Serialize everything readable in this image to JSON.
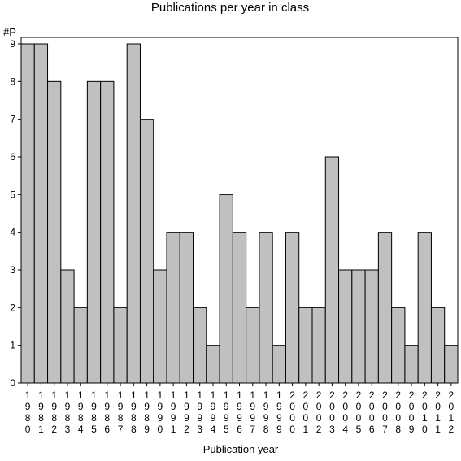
{
  "chart_data": {
    "type": "bar",
    "title": "Publications per year in class",
    "ylabel": "#P",
    "xlabel": "Publication year",
    "ylim": [
      0,
      9
    ],
    "yticks": [
      0,
      1,
      2,
      3,
      4,
      5,
      6,
      7,
      8,
      9
    ],
    "grid": false,
    "categories": [
      "1980",
      "1981",
      "1982",
      "1983",
      "1984",
      "1985",
      "1986",
      "1987",
      "1988",
      "1989",
      "1990",
      "1991",
      "1992",
      "1993",
      "1994",
      "1995",
      "1996",
      "1997",
      "1998",
      "1999",
      "2000",
      "2001",
      "2002",
      "2003",
      "2004",
      "2005",
      "2006",
      "2007",
      "2008",
      "2009",
      "2010",
      "2011",
      "2012"
    ],
    "values": [
      9,
      9,
      8,
      3,
      2,
      8,
      8,
      2,
      9,
      7,
      3,
      4,
      4,
      2,
      1,
      5,
      4,
      2,
      4,
      1,
      4,
      2,
      2,
      6,
      3,
      3,
      3,
      4,
      2,
      1,
      4,
      2,
      1
    ],
    "colors": {
      "bar_fill": "#c0c0c0",
      "bar_stroke": "#000000"
    }
  }
}
